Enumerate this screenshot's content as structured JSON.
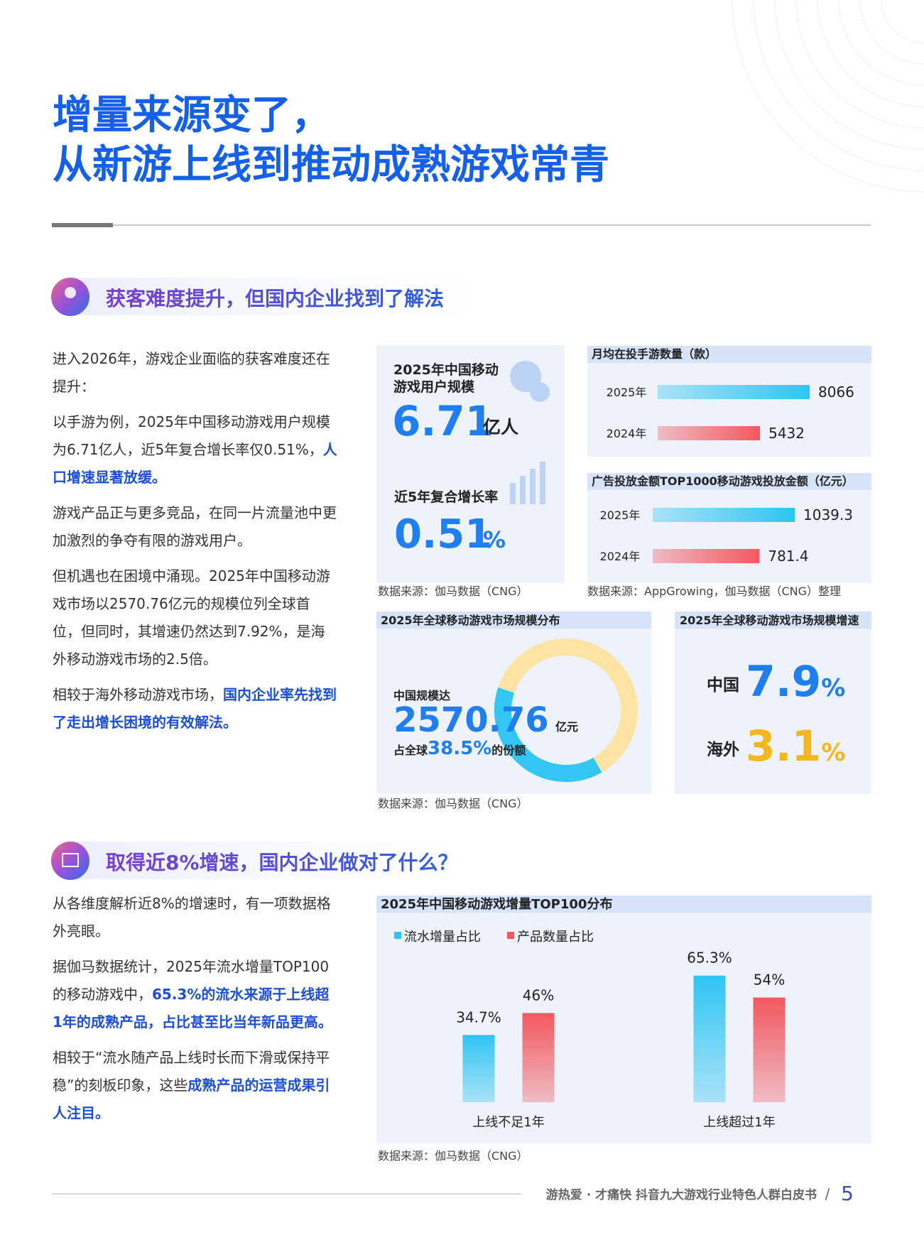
{
  "title": {
    "lines": [
      "增量来源变了，",
      "从新游上线到推动成熟游戏常青"
    ]
  },
  "sections": [
    {
      "heading": "获客难度提升，但国内企业找到了解法",
      "paragraphs": [
        [
          {
            "text": "进入2026年，游戏企业面临的获客难度还在提升："
          }
        ],
        [
          {
            "text": "以手游为例，2025年中国移动游戏用户规模为6.71亿人，近5年复合增长率仅0.51%，"
          },
          {
            "text": "人口增速显著放缓。",
            "emphasis": true
          }
        ],
        [
          {
            "text": "游戏产品正与更多竞品，在同一片流量池中更加激烈的争夺有限的游戏用户。"
          }
        ],
        [
          {
            "text": "但机遇也在困境中涌现。2025年中国移动游戏市场以2570.76亿元的规模位列全球首位，但同时，其增速仍然达到7.92%，是海外移动游戏市场的2.5倍。"
          }
        ],
        [
          {
            "text": "相较于海外移动游戏市场，"
          },
          {
            "text": "国内企业率先找到了走出增长困境的有效解法。",
            "emphasis": true
          }
        ]
      ]
    },
    {
      "heading": "取得近8%增速，国内企业做对了什么？",
      "paragraphs": [
        [
          {
            "text": "从各维度解析近8%的增速时，有一项数据格外亮眼。"
          }
        ],
        [
          {
            "text": "据伽马数据统计，2025年流水增量TOP100的移动游戏中，"
          },
          {
            "text": "65.3%的流水来源于上线超1年的成熟产品，占比甚至比当年新品更高。",
            "emphasis": true
          }
        ],
        [
          {
            "text": "相较于“流水随产品上线时长而下滑或保持平稳”的刻板印象，这些"
          },
          {
            "text": "成熟产品的运营成果引人注目。",
            "emphasis": true
          }
        ]
      ]
    }
  ],
  "user_card": {
    "scale_label": [
      "2025年中国移动",
      "游戏用户规模"
    ],
    "scale_value": "6.71",
    "scale_unit": "亿人",
    "growth_label": "近5年复合增长率",
    "growth_value": "0.51",
    "growth_unit": "%",
    "source": "数据来源：伽马数据（CNG）"
  },
  "charts": {
    "monthly_games": {
      "type": "bar",
      "orientation": "horizontal",
      "title": "月均在投手游数量（款）",
      "categories": [
        "2025年",
        "2024年"
      ],
      "values": [
        8066,
        5432
      ],
      "colors": [
        "#2ec5f2",
        "#f2585e"
      ]
    },
    "ad_spend": {
      "type": "bar",
      "orientation": "horizontal",
      "title": "广告投放金额TOP1000移动游戏投放金额（亿元）",
      "categories": [
        "2025年",
        "2024年"
      ],
      "values": [
        1039.3,
        781.4
      ],
      "colors": [
        "#2ec5f2",
        "#f2585e"
      ],
      "source": "数据来源：AppGrowing，伽马数据（CNG）整理"
    },
    "market_share": {
      "type": "pie",
      "title": "2025年全球移动游戏市场规模分布",
      "values": [
        38.5,
        61.5
      ],
      "colors": [
        "#33c6f2",
        "#fde4a4"
      ],
      "text": {
        "lead": "中国规模达",
        "amount": "2570.76",
        "amount_unit": "亿元",
        "share_prefix": "占全球",
        "share": "38.5%",
        "share_suffix": "的份额"
      },
      "source": "数据来源：伽马数据（CNG）"
    },
    "market_growth": {
      "title": "2025年全球移动游戏市场规模增速",
      "rows": [
        {
          "label": "中国",
          "value": "7.9",
          "unit": "%",
          "color": "#1f7ff0"
        },
        {
          "label": "海外",
          "value": "3.1",
          "unit": "%",
          "color": "#f5b71e"
        }
      ]
    },
    "top100": {
      "type": "bar",
      "title": "2025年中国移动游戏增量TOP100分布",
      "categories": [
        "上线不足1年",
        "上线超过1年"
      ],
      "series": [
        {
          "name": "流水增量占比",
          "color": "#2ec5f2",
          "values": [
            34.7,
            65.3
          ],
          "value_labels": [
            "34.7%",
            "65.3%"
          ]
        },
        {
          "name": "产品数量占比",
          "color": "#f2585e",
          "values": [
            46,
            54
          ],
          "value_labels": [
            "46%",
            "54%"
          ]
        }
      ],
      "source": "数据来源：伽马数据（CNG）"
    }
  },
  "footer": {
    "text": "游热爱 · 才痛快  抖音九大游戏行业特色人群白皮书",
    "separator": "/",
    "page": "5"
  }
}
